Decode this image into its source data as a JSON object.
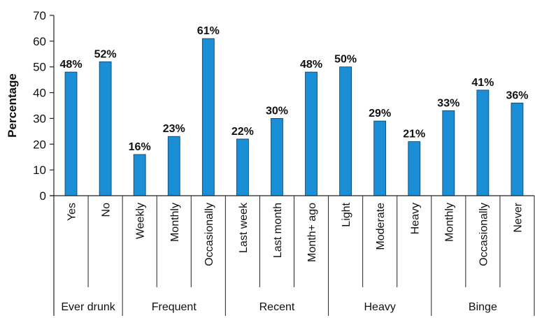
{
  "chart_data": {
    "type": "bar",
    "ylabel": "Percentage",
    "ylim": [
      0,
      70
    ],
    "yticks": [
      0,
      10,
      20,
      30,
      40,
      50,
      60,
      70
    ],
    "grid": false,
    "bar_color": "#1a8fd6",
    "groups": [
      {
        "label": "Ever drunk",
        "count": 2
      },
      {
        "label": "Frequent",
        "count": 3
      },
      {
        "label": "Recent",
        "count": 3
      },
      {
        "label": "Heavy",
        "count": 3
      },
      {
        "label": "Binge",
        "count": 3
      }
    ],
    "categories": [
      "Yes",
      "No",
      "Weekly",
      "Monthly",
      "Occasionally",
      "Last week",
      "Last month",
      "Month+ ago",
      "Light",
      "Moderate",
      "Heavy",
      "Monthly",
      "Occasionally",
      "Never"
    ],
    "values": [
      48,
      52,
      16,
      23,
      61,
      22,
      30,
      48,
      50,
      29,
      21,
      33,
      41,
      36
    ],
    "value_labels": [
      "48%",
      "52%",
      "16%",
      "23%",
      "61%",
      "22%",
      "30%",
      "48%",
      "50%",
      "29%",
      "21%",
      "33%",
      "41%",
      "36%"
    ]
  }
}
